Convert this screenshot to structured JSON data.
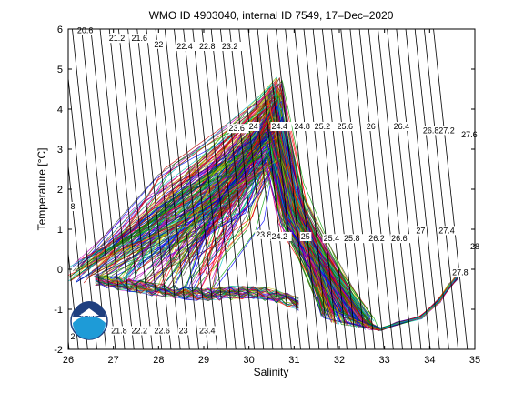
{
  "chart_data": {
    "type": "line",
    "title": "WMO ID 4903040, internal ID 7549, 17–Dec–2020",
    "xlabel": "Salinity",
    "ylabel": "Temperature [°C]",
    "xlim": [
      26,
      35
    ],
    "ylim": [
      -2,
      6
    ],
    "xticks": [
      "26",
      "27",
      "28",
      "29",
      "30",
      "31",
      "32",
      "33",
      "34",
      "35"
    ],
    "yticks": [
      "-2",
      "-1",
      "0",
      "1",
      "2",
      "3",
      "4",
      "5",
      "6"
    ],
    "grid": false,
    "legend": "none",
    "density_contours": [
      {
        "label": "20.6",
        "s": 26.2,
        "t": 5.9
      },
      {
        "label": "21.2",
        "s": 26.9,
        "t": 5.7
      },
      {
        "label": "21.6",
        "s": 27.4,
        "t": 5.7
      },
      {
        "label": "22",
        "s": 27.9,
        "t": 5.55
      },
      {
        "label": "22.4",
        "s": 28.4,
        "t": 5.5
      },
      {
        "label": "22.8",
        "s": 28.9,
        "t": 5.5
      },
      {
        "label": "23.2",
        "s": 29.4,
        "t": 5.5
      },
      {
        "label": "23.6",
        "s": 29.55,
        "t": 3.45
      },
      {
        "label": "24",
        "s": 30.0,
        "t": 3.5
      },
      {
        "label": "24.4",
        "s": 30.5,
        "t": 3.5
      },
      {
        "label": "24.8",
        "s": 31.0,
        "t": 3.5
      },
      {
        "label": "25.2",
        "s": 31.45,
        "t": 3.5
      },
      {
        "label": "25.6",
        "s": 31.95,
        "t": 3.5
      },
      {
        "label": "26",
        "s": 32.6,
        "t": 3.5
      },
      {
        "label": "26.4",
        "s": 33.2,
        "t": 3.5
      },
      {
        "label": "26.8",
        "s": 33.85,
        "t": 3.4
      },
      {
        "label": "27.2",
        "s": 34.2,
        "t": 3.4
      },
      {
        "label": "27.6",
        "s": 34.7,
        "t": 3.3
      },
      {
        "label": "23.8",
        "s": 30.15,
        "t": 0.8
      },
      {
        "label": "24.2",
        "s": 30.5,
        "t": 0.75
      },
      {
        "label": "25",
        "s": 31.15,
        "t": 0.75
      },
      {
        "label": "25.4",
        "s": 31.65,
        "t": 0.7
      },
      {
        "label": "25.8",
        "s": 32.1,
        "t": 0.7
      },
      {
        "label": "26.2",
        "s": 32.65,
        "t": 0.7
      },
      {
        "label": "26.6",
        "s": 33.15,
        "t": 0.7
      },
      {
        "label": "27",
        "s": 33.7,
        "t": 0.9
      },
      {
        "label": "27.4",
        "s": 34.2,
        "t": 0.9
      },
      {
        "label": "27.8",
        "s": 34.5,
        "t": -0.15
      },
      {
        "label": "28",
        "s": 34.9,
        "t": 0.5
      },
      {
        "label": "21.8",
        "s": 26.95,
        "t": -1.6
      },
      {
        "label": "22.2",
        "s": 27.4,
        "t": -1.6
      },
      {
        "label": "22.6",
        "s": 27.9,
        "t": -1.6
      },
      {
        "label": "23",
        "s": 28.45,
        "t": -1.6
      },
      {
        "label": "23.4",
        "s": 28.9,
        "t": -1.6
      },
      {
        "label": "2",
        "s": 26.05,
        "t": -1.75
      },
      {
        "label": "8",
        "s": 26.05,
        "t": 1.5
      }
    ],
    "profile_envelope": {
      "peak": {
        "s": 30.6,
        "t": 4.8
      },
      "upper_edge": [
        [
          26.0,
          0.2
        ],
        [
          27.0,
          1.3
        ],
        [
          28.0,
          1.9
        ],
        [
          29.0,
          2.7
        ],
        [
          29.8,
          3.6
        ],
        [
          30.3,
          4.3
        ],
        [
          30.6,
          4.8
        ]
      ],
      "right_edge": [
        [
          30.6,
          4.8
        ],
        [
          30.9,
          4.0
        ],
        [
          31.0,
          2.8
        ],
        [
          31.3,
          1.3
        ],
        [
          31.6,
          0.2
        ],
        [
          31.9,
          -0.5
        ],
        [
          32.3,
          -1.1
        ],
        [
          32.7,
          -1.4
        ],
        [
          32.9,
          -1.5
        ]
      ],
      "deep_tail": [
        [
          32.9,
          -1.5
        ],
        [
          33.3,
          -1.35
        ],
        [
          33.8,
          -1.2
        ],
        [
          34.2,
          -0.8
        ],
        [
          34.45,
          -0.4
        ],
        [
          34.6,
          -0.2
        ]
      ],
      "lower_edge": [
        [
          26.0,
          -0.3
        ],
        [
          27.0,
          -0.5
        ],
        [
          28.0,
          -0.7
        ],
        [
          29.0,
          -0.8
        ],
        [
          30.0,
          -0.75
        ],
        [
          30.5,
          -0.8
        ],
        [
          31.0,
          -1.0
        ],
        [
          31.5,
          -1.2
        ],
        [
          32.0,
          -1.4
        ],
        [
          32.5,
          -1.5
        ],
        [
          32.9,
          -1.55
        ]
      ]
    },
    "series_count_estimate": 300
  },
  "logo": {
    "text": "NOAA"
  }
}
